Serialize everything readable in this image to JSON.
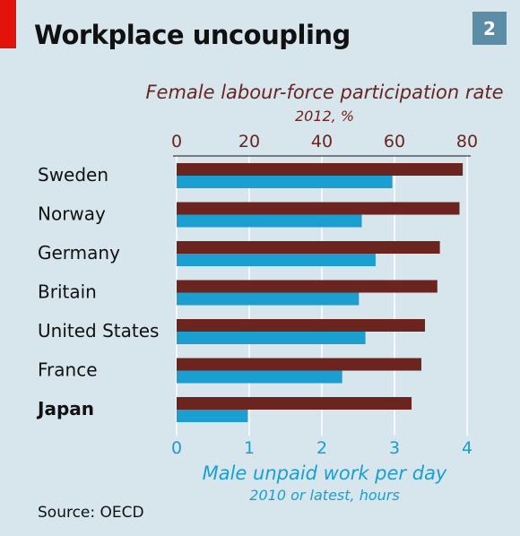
{
  "header": {
    "title": "Workplace uncoupling",
    "badge": "2"
  },
  "footer": {
    "source": "Source: OECD"
  },
  "chart_data": {
    "type": "bar",
    "title": "Workplace uncoupling",
    "categories": [
      "Sweden",
      "Norway",
      "Germany",
      "Britain",
      "United States",
      "France",
      "Japan"
    ],
    "emphasized_category": "Japan",
    "top_axis": {
      "label": "Female labour-force participation rate",
      "sublabel": "2012, %",
      "range": [
        0,
        80
      ],
      "ticks": [
        0,
        20,
        40,
        60,
        80
      ],
      "color": "#6b241e"
    },
    "bottom_axis": {
      "label": "Male unpaid work per day",
      "sublabel": "2010 or latest, hours",
      "range": [
        0,
        4
      ],
      "ticks": [
        0,
        1,
        2,
        3,
        4
      ],
      "color": "#1a9fd0"
    },
    "series": [
      {
        "values": [
          78.8,
          77.9,
          72.5,
          71.8,
          68.4,
          67.4,
          64.7
        ],
        "color": "#6b241e",
        "axis": "top"
      },
      {
        "values": [
          2.97,
          2.55,
          2.74,
          2.51,
          2.6,
          2.28,
          0.98
        ],
        "color": "#1a9fd0",
        "axis": "bottom"
      }
    ],
    "grid": true,
    "legend": "none"
  }
}
